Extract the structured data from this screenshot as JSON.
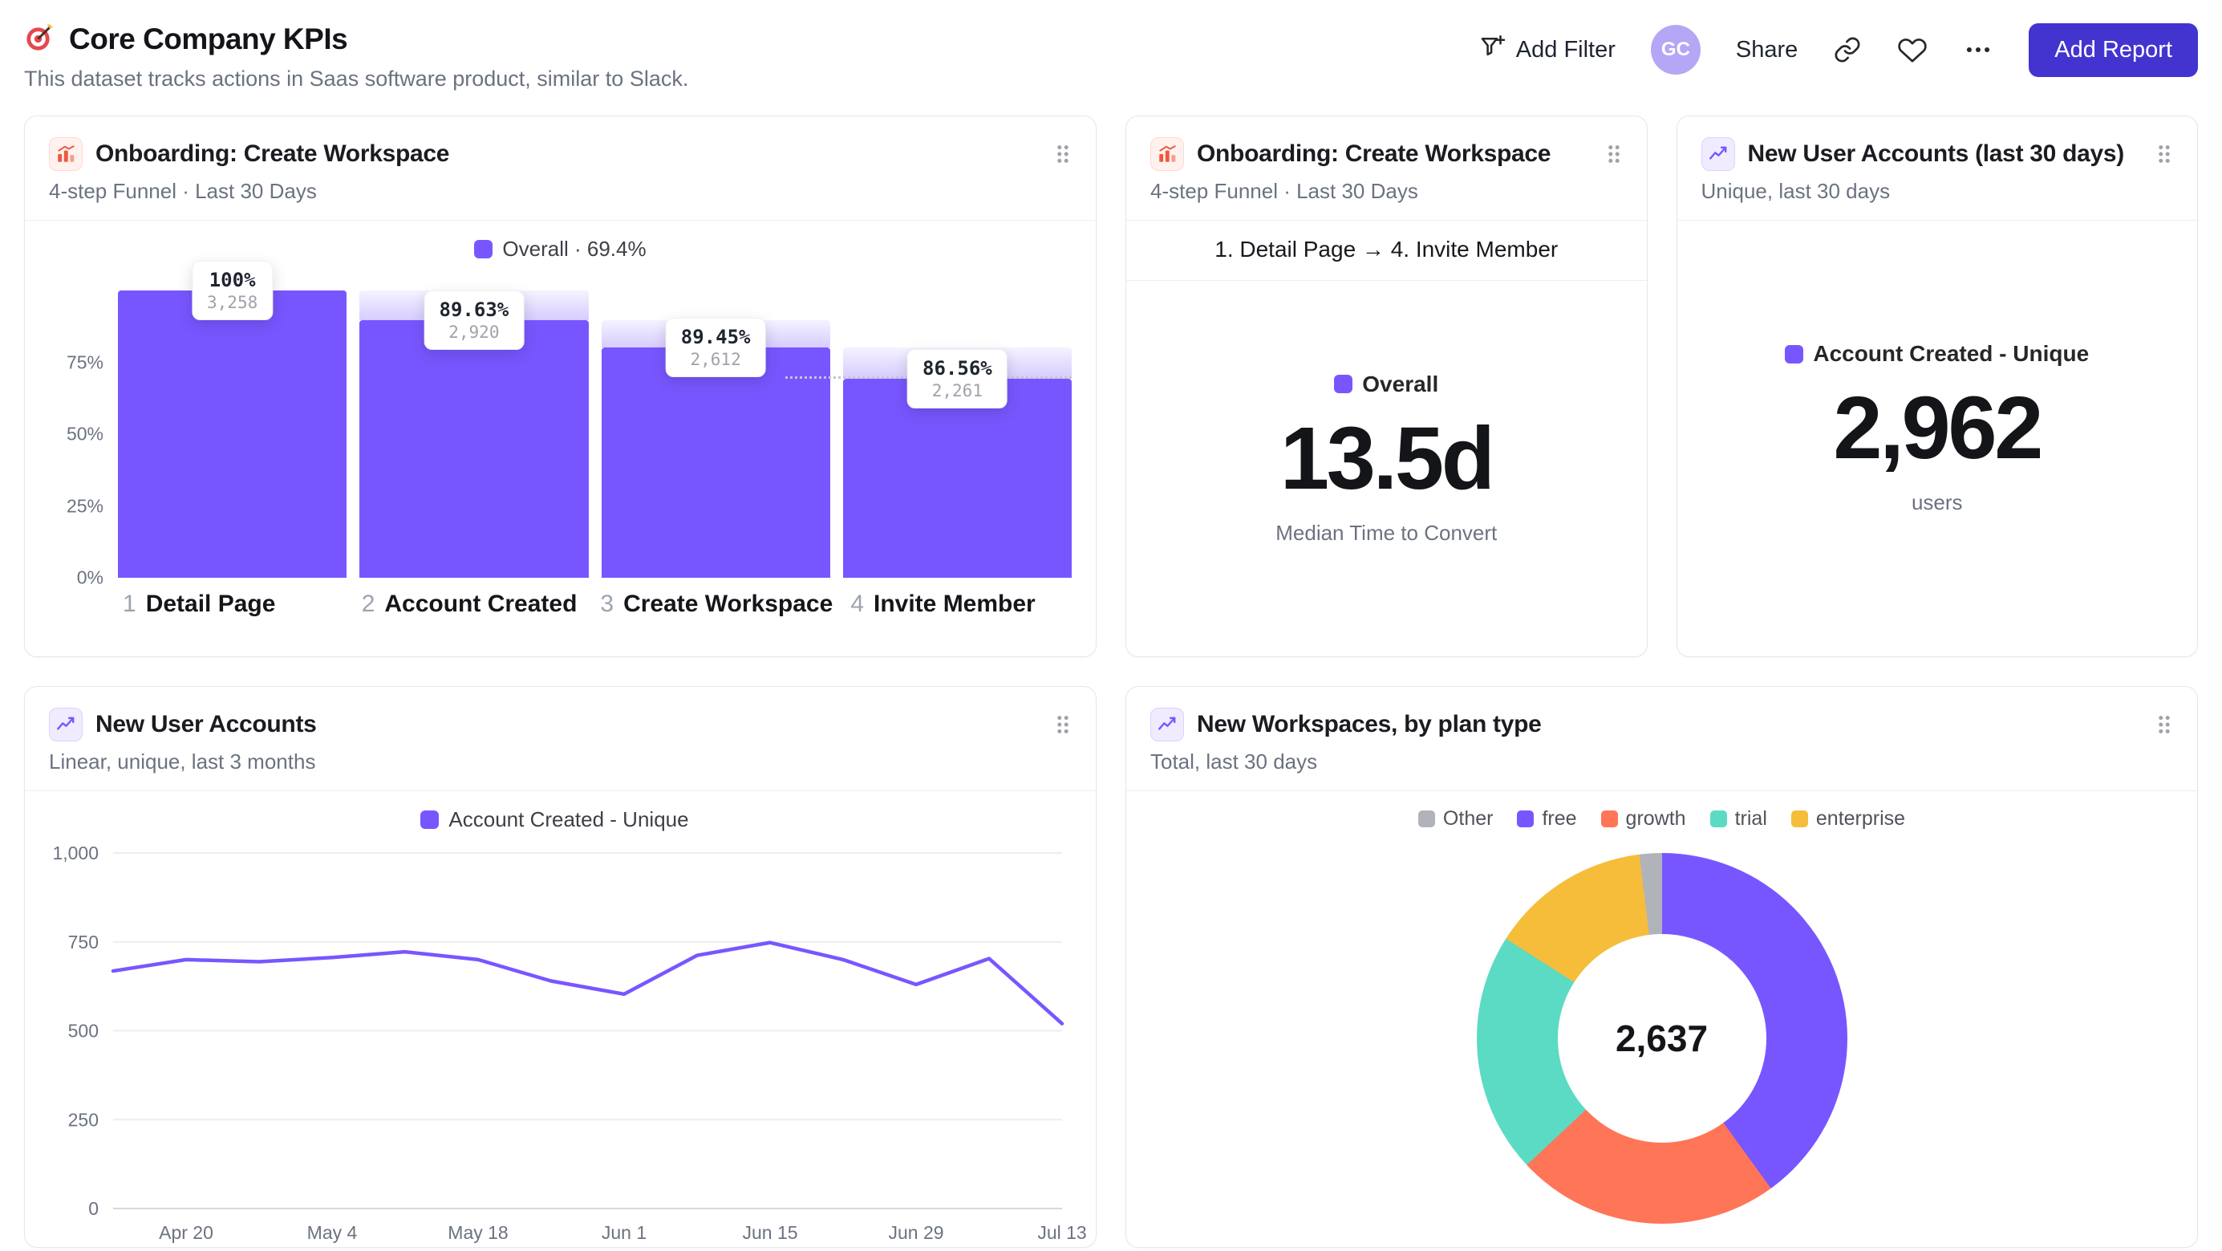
{
  "page": {
    "title": "Core Company KPIs",
    "subtitle": "This dataset tracks actions in Saas software product, similar to Slack."
  },
  "toolbar": {
    "add_filter": "Add Filter",
    "avatar": "GC",
    "share": "Share",
    "add_report": "Add Report"
  },
  "colors": {
    "purple": "#7856FF",
    "purple_light": "#E3DAFF",
    "coral": "#FF7557",
    "teal": "#5BDBC3",
    "yellow": "#F6BD3A",
    "gray_segment": "#B0B4BA",
    "accent_button": "#4434CF",
    "avatar_bg": "#B6A6F6"
  },
  "cards": {
    "funnel": {
      "title": "Onboarding: Create Workspace",
      "subtitle": "4-step Funnel · Last 30 Days",
      "legend": "Overall · 69.4%",
      "chart_data": {
        "type": "funnel",
        "y_ticks": [
          "75%",
          "50%",
          "25%",
          "0%"
        ],
        "y_tick_pcts": [
          75,
          50,
          25,
          0
        ],
        "overall_pct": 69.4,
        "steps": [
          {
            "index": "1",
            "label": "Detail Page",
            "conversion": "100%",
            "count": "3,258",
            "height_pct": 100
          },
          {
            "index": "2",
            "label": "Account Created",
            "conversion": "89.63%",
            "count": "2,920",
            "height_pct": 89.63
          },
          {
            "index": "3",
            "label": "Create Workspace",
            "conversion": "89.45%",
            "count": "2,612",
            "height_pct": 80.17
          },
          {
            "index": "4",
            "label": "Invite Member",
            "conversion": "86.56%",
            "count": "2,261",
            "height_pct": 69.4
          }
        ]
      }
    },
    "time_to_convert": {
      "title": "Onboarding: Create Workspace",
      "subtitle": "4-step Funnel · Last 30 Days",
      "range_label": "1. Detail Page → 4. Invite Member",
      "legend": "Overall",
      "value": "13.5d",
      "caption": "Median Time to Convert"
    },
    "new_accounts_30d": {
      "title": "New User Accounts (last 30 days)",
      "subtitle": "Unique, last 30 days",
      "legend": "Account Created - Unique",
      "value": "2,962",
      "caption": "users"
    },
    "accounts_trend": {
      "title": "New User Accounts",
      "subtitle": "Linear, unique, last 3 months",
      "legend": "Account Created - Unique",
      "chart_data": {
        "type": "line",
        "title": "New User Accounts",
        "ylabel": "",
        "xlabel": "",
        "ylim": [
          0,
          1000
        ],
        "y_ticks": [
          0,
          250,
          500,
          750,
          1000
        ],
        "y_tick_labels": [
          "0",
          "250",
          "500",
          "750",
          "1,000"
        ],
        "x_ticks": [
          "Apr 20",
          "May 4",
          "May 18",
          "Jun 1",
          "Jun 15",
          "Jun 29",
          "Jul 13"
        ],
        "x_tick_indices": [
          1,
          3,
          5,
          7,
          9,
          11,
          13
        ],
        "values": [
          668,
          700,
          694,
          706,
          722,
          700,
          640,
          603,
          712,
          748,
          700,
          630,
          703,
          520
        ]
      }
    },
    "workspaces_by_plan": {
      "title": "New Workspaces, by plan type",
      "subtitle": "Total, last 30 days",
      "center_value": "2,637",
      "chart_data": {
        "type": "pie",
        "title": "New Workspaces, by plan type",
        "total_label": "2,637",
        "total": 2637,
        "draw_order": [
          "free",
          "growth",
          "trial",
          "enterprise",
          "Other"
        ],
        "segments": [
          {
            "label": "Other",
            "value": 52,
            "color": "#B0B4BA"
          },
          {
            "label": "free",
            "value": 1055,
            "color": "#7856FF"
          },
          {
            "label": "growth",
            "value": 607,
            "color": "#FF7557"
          },
          {
            "label": "trial",
            "value": 554,
            "color": "#5BDBC3"
          },
          {
            "label": "enterprise",
            "value": 369,
            "color": "#F6BD3A"
          }
        ]
      }
    }
  }
}
